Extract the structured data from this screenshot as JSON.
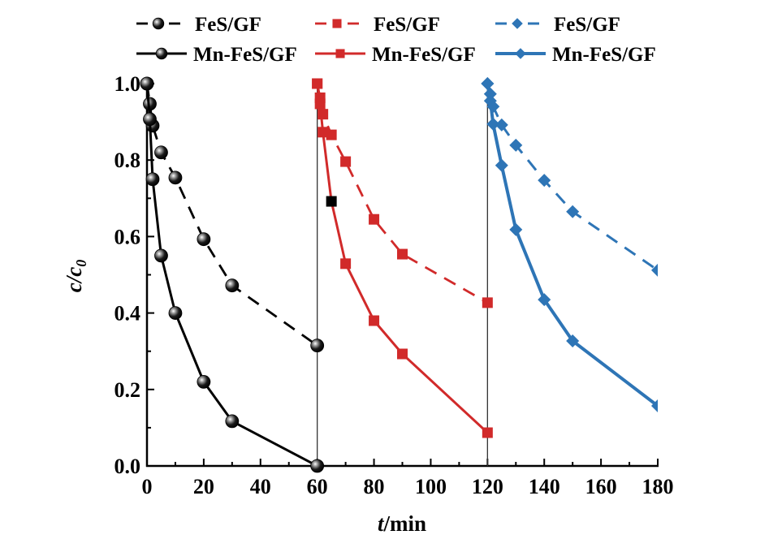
{
  "chart_data": {
    "type": "line",
    "title": "",
    "xlabel": {
      "italic": "t",
      "rest": "/min"
    },
    "ylabel": {
      "italic": "c/c",
      "sub": "0"
    },
    "xlim": [
      0,
      180
    ],
    "ylim": [
      0,
      1.0
    ],
    "x_ticks": [
      0,
      20,
      40,
      60,
      80,
      100,
      120,
      140,
      160,
      180
    ],
    "x_tick_labels": [
      "0",
      "20",
      "40",
      "60",
      "80",
      "100",
      "120",
      "140",
      "160",
      "180"
    ],
    "x_minor_ticks": [
      10,
      30,
      50,
      70,
      90,
      110,
      130,
      150,
      170
    ],
    "y_ticks": [
      0.0,
      0.2,
      0.4,
      0.6,
      0.8,
      1.0
    ],
    "y_tick_labels": [
      "0.0",
      "0.2",
      "0.4",
      "0.6",
      "0.8",
      "1.0"
    ],
    "y_minor_ticks": [
      0.1,
      0.3,
      0.5,
      0.7,
      0.9
    ],
    "grid": false,
    "cycle_dividers": [
      60,
      120
    ],
    "legend_placement": "top (above plot), 3 columns × 2 rows",
    "series": [
      {
        "name": "FeS/GF",
        "color": "#000000",
        "line": "dashed",
        "marker": "sphere",
        "x": [
          0,
          1,
          2,
          5,
          10,
          20,
          30,
          60
        ],
        "y": [
          1.0,
          0.947,
          0.89,
          0.82,
          0.754,
          0.593,
          0.472,
          0.315
        ]
      },
      {
        "name": "Mn-FeS/GF",
        "color": "#000000",
        "line": "solid",
        "marker": "sphere",
        "x": [
          0,
          1,
          2,
          5,
          10,
          20,
          30,
          60
        ],
        "y": [
          1.0,
          0.907,
          0.75,
          0.55,
          0.4,
          0.22,
          0.117,
          0.0
        ]
      },
      {
        "name": "FeS/GF",
        "color": "#d12a2a",
        "line": "dashed",
        "marker": "square",
        "x": [
          60,
          61,
          62,
          65,
          70,
          80,
          90,
          120
        ],
        "y": [
          1.0,
          0.963,
          0.92,
          0.866,
          0.796,
          0.645,
          0.554,
          0.427
        ]
      },
      {
        "name": "Mn-FeS/GF",
        "color": "#d12a2a",
        "line": "solid",
        "marker": "square",
        "x": [
          60,
          61,
          62,
          65,
          70,
          80,
          90,
          120
        ],
        "y": [
          1.0,
          0.947,
          0.873,
          0.692,
          0.529,
          0.38,
          0.293,
          0.087
        ],
        "highlight_point": {
          "x": 65,
          "color": "#000000"
        }
      },
      {
        "name": "FeS/GF",
        "color": "#2e75b6",
        "line": "dashed",
        "marker": "diamond",
        "x": [
          120,
          121,
          122,
          125,
          130,
          140,
          150,
          180
        ],
        "y": [
          1.0,
          0.973,
          0.94,
          0.892,
          0.839,
          0.747,
          0.665,
          0.512
        ]
      },
      {
        "name": "Mn-FeS/GF",
        "color": "#2e75b6",
        "line": "solid",
        "marker": "diamond",
        "x": [
          120,
          121,
          122,
          125,
          130,
          140,
          150,
          180
        ],
        "y": [
          1.0,
          0.955,
          0.894,
          0.786,
          0.618,
          0.435,
          0.327,
          0.157
        ]
      }
    ]
  },
  "legend": [
    {
      "label": "FeS/GF",
      "color": "#000000",
      "line": "dashed",
      "marker": "sphere"
    },
    {
      "label": "FeS/GF",
      "color": "#d12a2a",
      "line": "dashed",
      "marker": "square"
    },
    {
      "label": "FeS/GF",
      "color": "#2e75b6",
      "line": "dashed",
      "marker": "diamond"
    },
    {
      "label": "Mn-FeS/GF",
      "color": "#000000",
      "line": "solid",
      "marker": "sphere"
    },
    {
      "label": "Mn-FeS/GF",
      "color": "#d12a2a",
      "line": "solid",
      "marker": "square"
    },
    {
      "label": "Mn-FeS/GF",
      "color": "#2e75b6",
      "line": "solid",
      "marker": "diamond"
    }
  ]
}
